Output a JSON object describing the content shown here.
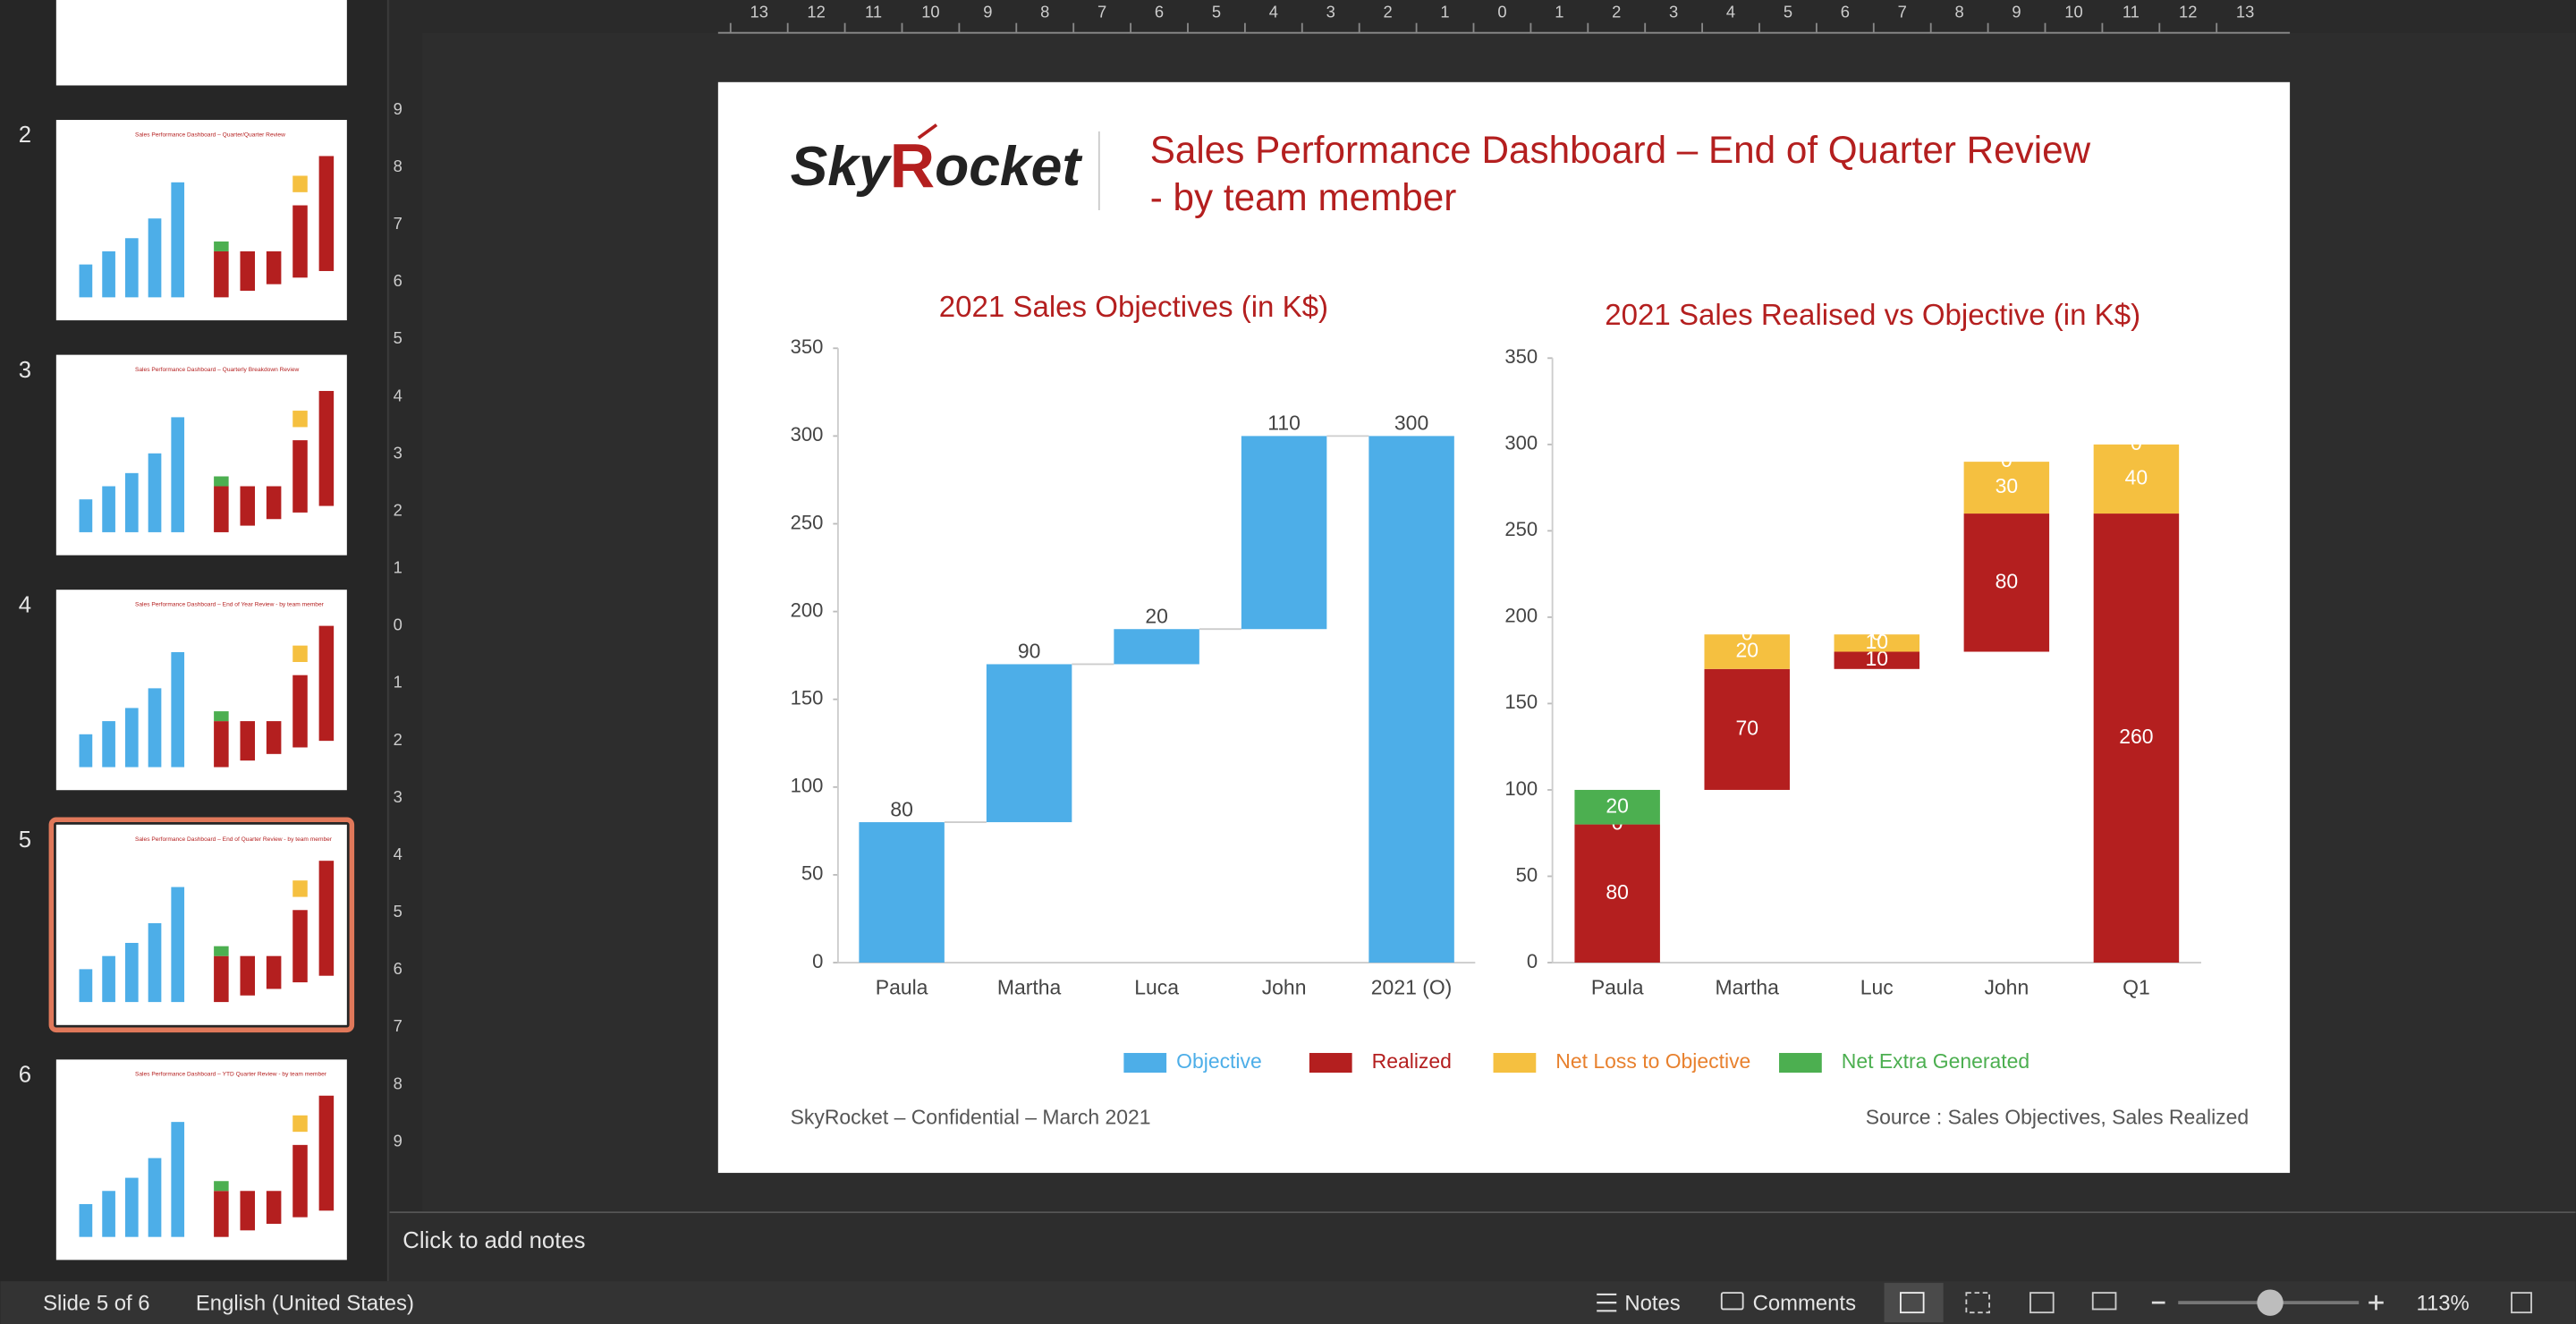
{
  "slide_panel": {
    "thumbnails": [
      {
        "number": 2,
        "title": "Sales Performance Dashboard – Quarter/Quarter Review"
      },
      {
        "number": 3,
        "title": "Sales Performance Dashboard – Quarterly Breakdown Review"
      },
      {
        "number": 4,
        "title": "Sales Performance Dashboard – End of Year Review - by team member"
      },
      {
        "number": 5,
        "title": "Sales Performance Dashboard – End of Quarter Review - by team member"
      },
      {
        "number": 6,
        "title": "Sales Performance Dashboard – YTD Quarter Review - by team member"
      }
    ],
    "selected": 5
  },
  "ruler": {
    "horizontal": [
      13,
      12,
      11,
      10,
      9,
      8,
      7,
      6,
      5,
      4,
      3,
      2,
      1,
      0,
      1,
      2,
      3,
      4,
      5,
      6,
      7,
      8,
      9,
      10,
      11,
      12,
      13
    ],
    "vertical": [
      9,
      8,
      7,
      6,
      5,
      4,
      3,
      2,
      1,
      0,
      1,
      2,
      3,
      4,
      5,
      6,
      7,
      8,
      9
    ]
  },
  "slide": {
    "logo": [
      "Sky",
      "R",
      "ocket"
    ],
    "title": [
      "Sales Performance Dashboard – End of Quarter Review",
      "- by team member"
    ],
    "footer_left": "SkyRocket – Confidential – March 2021",
    "footer_right": "Source : Sales Objectives, Sales Realized"
  },
  "chart_data": [
    {
      "type": "waterfall",
      "title": "2021 Sales Objectives (in K$)",
      "categories": [
        "Paula",
        "Martha",
        "Luca",
        "John",
        "2021 (O)"
      ],
      "series": [
        {
          "name": "Objective",
          "color": "#4DAEE8",
          "values": [
            80,
            90,
            20,
            110,
            300
          ]
        }
      ],
      "last_is_total": true,
      "ylim": [
        0,
        350
      ],
      "yticks": [
        0,
        50,
        100,
        150,
        200,
        250,
        300,
        350
      ]
    },
    {
      "type": "floating-stacked-bar",
      "title": "2021 Sales Realised vs Objective (in K$)",
      "categories": [
        "Paula",
        "Martha",
        "Luc",
        "John",
        "Q1"
      ],
      "base": [
        0,
        100,
        170,
        180,
        0
      ],
      "series": [
        {
          "name": "Realized",
          "color": "#B41F1F",
          "label_color": "#B41F1F",
          "values": [
            80,
            70,
            10,
            80,
            260
          ]
        },
        {
          "name": "Net Loss  to Objective",
          "color": "#F5C040",
          "label_color": "#E8812E",
          "values": [
            0,
            20,
            10,
            30,
            40
          ]
        },
        {
          "name": "Net Extra Generated",
          "color": "#4CAF50",
          "label_color": "#4CAF50",
          "values": [
            20,
            0,
            0,
            0,
            0
          ]
        }
      ],
      "ylim": [
        0,
        350
      ],
      "yticks": [
        0,
        50,
        100,
        150,
        200,
        250,
        300,
        350
      ]
    }
  ],
  "notes": "Click to add notes",
  "status_bar": {
    "slide": "Slide 5 of 6",
    "language": "English (United States)",
    "notes_button": "Notes",
    "comments_button": "Comments",
    "zoom": "113%"
  }
}
